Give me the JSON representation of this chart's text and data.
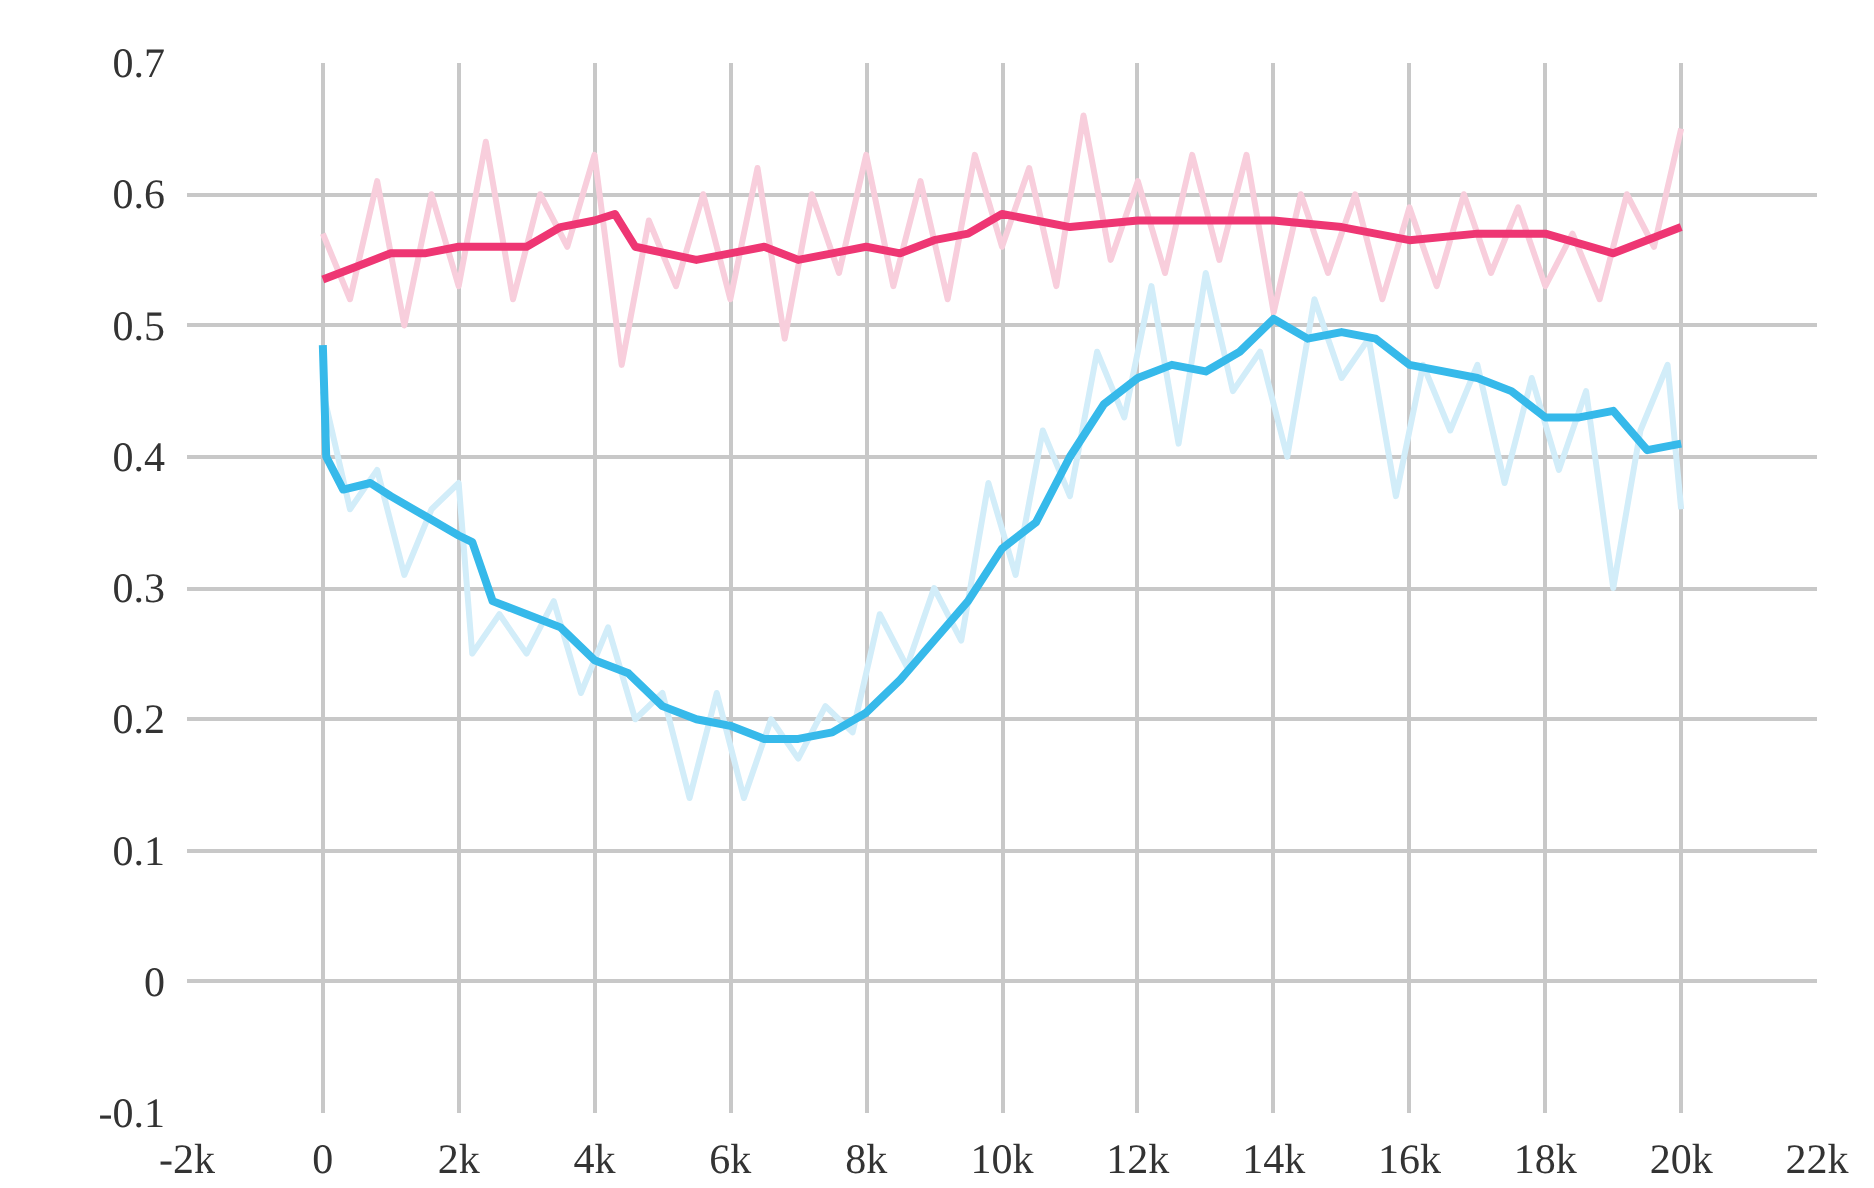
{
  "chart_data": {
    "type": "line",
    "xlim": [
      -2000,
      22000
    ],
    "ylim": [
      -0.1,
      0.7
    ],
    "xticks": [
      {
        "value": -2000,
        "label": "-2k"
      },
      0,
      {
        "value": 2000,
        "label": "2k"
      },
      {
        "value": 4000,
        "label": "4k"
      },
      {
        "value": 6000,
        "label": "6k"
      },
      {
        "value": 8000,
        "label": "8k"
      },
      {
        "value": 10000,
        "label": "10k"
      },
      {
        "value": 12000,
        "label": "12k"
      },
      {
        "value": 14000,
        "label": "14k"
      },
      {
        "value": 16000,
        "label": "16k"
      },
      {
        "value": 18000,
        "label": "18k"
      },
      {
        "value": 20000,
        "label": "20k"
      },
      {
        "value": 22000,
        "label": "22k"
      }
    ],
    "yticks": [
      -0.1,
      0,
      0.1,
      0.2,
      0.3,
      0.4,
      0.5,
      0.6,
      0.7
    ],
    "grid": true,
    "marker": "none",
    "line_style": "solid",
    "series": [
      {
        "color": "#f8cedc",
        "x": [
          0,
          400,
          800,
          1200,
          1600,
          2000,
          2400,
          2800,
          3200,
          3600,
          4000,
          4400,
          4800,
          5200,
          5600,
          6000,
          6400,
          6800,
          7200,
          7600,
          8000,
          8400,
          8800,
          9200,
          9600,
          10000,
          10400,
          10800,
          11200,
          11600,
          12000,
          12400,
          12800,
          13200,
          13600,
          14000,
          14400,
          14800,
          15200,
          15600,
          16000,
          16400,
          16800,
          17200,
          17600,
          18000,
          18400,
          18800,
          19200,
          19600,
          20000
        ],
        "values": [
          0.57,
          0.52,
          0.61,
          0.5,
          0.6,
          0.53,
          0.64,
          0.52,
          0.6,
          0.56,
          0.63,
          0.47,
          0.58,
          0.53,
          0.6,
          0.52,
          0.62,
          0.49,
          0.6,
          0.54,
          0.63,
          0.53,
          0.61,
          0.52,
          0.63,
          0.56,
          0.62,
          0.53,
          0.66,
          0.55,
          0.61,
          0.54,
          0.63,
          0.55,
          0.63,
          0.51,
          0.6,
          0.54,
          0.6,
          0.52,
          0.59,
          0.53,
          0.6,
          0.54,
          0.59,
          0.53,
          0.57,
          0.52,
          0.6,
          0.56,
          0.65
        ]
      },
      {
        "color": "#d2edf9",
        "x": [
          0,
          400,
          800,
          1200,
          1600,
          2000,
          2200,
          2600,
          3000,
          3400,
          3800,
          4200,
          4600,
          5000,
          5400,
          5800,
          6200,
          6600,
          7000,
          7400,
          7800,
          8200,
          8600,
          9000,
          9400,
          9800,
          10200,
          10600,
          11000,
          11400,
          11800,
          12200,
          12600,
          13000,
          13400,
          13800,
          14200,
          14600,
          15000,
          15400,
          15800,
          16200,
          16600,
          17000,
          17400,
          17800,
          18200,
          18600,
          19000,
          19400,
          19800,
          20000
        ],
        "values": [
          0.45,
          0.36,
          0.39,
          0.31,
          0.36,
          0.38,
          0.25,
          0.28,
          0.25,
          0.29,
          0.22,
          0.27,
          0.2,
          0.22,
          0.14,
          0.22,
          0.14,
          0.2,
          0.17,
          0.21,
          0.19,
          0.28,
          0.24,
          0.3,
          0.26,
          0.38,
          0.31,
          0.42,
          0.37,
          0.48,
          0.43,
          0.53,
          0.41,
          0.54,
          0.45,
          0.48,
          0.4,
          0.52,
          0.46,
          0.49,
          0.37,
          0.47,
          0.42,
          0.47,
          0.38,
          0.46,
          0.39,
          0.45,
          0.3,
          0.42,
          0.47,
          0.36
        ]
      },
      {
        "color": "#ee3673",
        "x": [
          0,
          500,
          1000,
          1500,
          2000,
          2500,
          3000,
          3500,
          4000,
          4300,
          4600,
          5500,
          6000,
          6500,
          7000,
          7500,
          8000,
          8500,
          9000,
          9500,
          10000,
          10500,
          11000,
          12000,
          13000,
          14000,
          15000,
          16000,
          17000,
          18000,
          19000,
          20000
        ],
        "values": [
          0.535,
          0.545,
          0.555,
          0.555,
          0.56,
          0.56,
          0.56,
          0.575,
          0.58,
          0.585,
          0.56,
          0.55,
          0.555,
          0.56,
          0.55,
          0.555,
          0.56,
          0.555,
          0.565,
          0.57,
          0.585,
          0.58,
          0.575,
          0.58,
          0.58,
          0.58,
          0.575,
          0.565,
          0.57,
          0.57,
          0.555,
          0.575
        ]
      },
      {
        "color": "#36b9ea",
        "x": [
          0,
          50,
          300,
          700,
          1000,
          1500,
          2000,
          2200,
          2500,
          3000,
          3500,
          4000,
          4500,
          5000,
          5500,
          6000,
          6500,
          7000,
          7500,
          8000,
          8500,
          9000,
          9500,
          10000,
          10500,
          11000,
          11500,
          12000,
          12500,
          13000,
          13500,
          14000,
          14500,
          15000,
          15500,
          16000,
          16500,
          17000,
          17500,
          18000,
          18500,
          19000,
          19500,
          20000
        ],
        "values": [
          0.485,
          0.4,
          0.375,
          0.38,
          0.37,
          0.355,
          0.34,
          0.335,
          0.29,
          0.28,
          0.27,
          0.245,
          0.235,
          0.21,
          0.2,
          0.195,
          0.185,
          0.185,
          0.19,
          0.205,
          0.23,
          0.26,
          0.29,
          0.33,
          0.35,
          0.4,
          0.44,
          0.46,
          0.47,
          0.465,
          0.48,
          0.505,
          0.49,
          0.495,
          0.49,
          0.47,
          0.465,
          0.46,
          0.45,
          0.43,
          0.43,
          0.435,
          0.405,
          0.41
        ]
      }
    ]
  }
}
